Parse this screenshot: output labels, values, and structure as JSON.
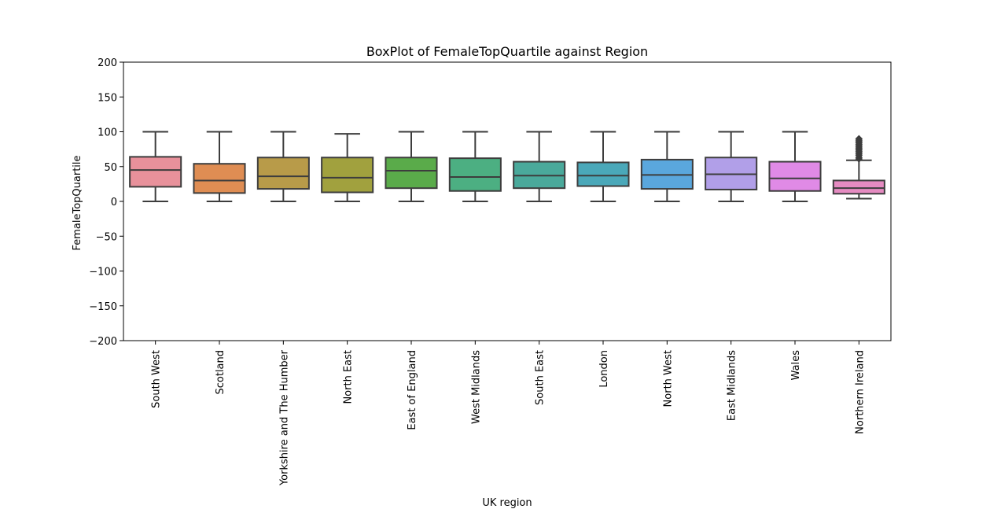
{
  "chart_data": {
    "type": "box",
    "title": "BoxPlot of FemaleTopQuartile against Region",
    "xlabel": "UK region",
    "ylabel": "FemaleTopQuartile",
    "ylim": [
      -200,
      200
    ],
    "yticks": [
      -200,
      -150,
      -100,
      -50,
      0,
      50,
      100,
      150,
      200
    ],
    "grid": false,
    "categories": [
      "South West",
      "Scotland",
      "Yorkshire and The Humber",
      "North East",
      "East of England",
      "West Midlands",
      "South East",
      "London",
      "North West",
      "East Midlands",
      "Wales",
      "Northern Ireland"
    ],
    "boxes": [
      {
        "category": "South West",
        "whisker_low": 0,
        "q1": 21,
        "median": 45,
        "q3": 64,
        "whisker_high": 100,
        "color": "#e8919b"
      },
      {
        "category": "Scotland",
        "whisker_low": 0,
        "q1": 12,
        "median": 30,
        "q3": 54,
        "whisker_high": 100,
        "color": "#df8d53"
      },
      {
        "category": "Yorkshire and The Humber",
        "whisker_low": 0,
        "q1": 18,
        "median": 36,
        "q3": 63,
        "whisker_high": 100,
        "color": "#b89b49"
      },
      {
        "category": "North East",
        "whisker_low": 0,
        "q1": 13,
        "median": 34,
        "q3": 63,
        "whisker_high": 97,
        "color": "#a1a13e"
      },
      {
        "category": "East of England",
        "whisker_low": 0,
        "q1": 19,
        "median": 44,
        "q3": 63,
        "whisker_high": 100,
        "color": "#5aab4a"
      },
      {
        "category": "West Midlands",
        "whisker_low": 0,
        "q1": 15,
        "median": 35,
        "q3": 62,
        "whisker_high": 100,
        "color": "#4caf82"
      },
      {
        "category": "South East",
        "whisker_low": 0,
        "q1": 19,
        "median": 37,
        "q3": 57,
        "whisker_high": 100,
        "color": "#4aa99b"
      },
      {
        "category": "London",
        "whisker_low": 0,
        "q1": 22,
        "median": 37,
        "q3": 56,
        "whisker_high": 100,
        "color": "#4aa8b9"
      },
      {
        "category": "North West",
        "whisker_low": 0,
        "q1": 18,
        "median": 38,
        "q3": 60,
        "whisker_high": 100,
        "color": "#5aa7dd"
      },
      {
        "category": "East Midlands",
        "whisker_low": 0,
        "q1": 17,
        "median": 39,
        "q3": 63,
        "whisker_high": 100,
        "color": "#b19fe8"
      },
      {
        "category": "Wales",
        "whisker_low": 0,
        "q1": 15,
        "median": 33,
        "q3": 57,
        "whisker_high": 100,
        "color": "#e08ae6"
      },
      {
        "category": "Northern Ireland",
        "whisker_low": 4,
        "q1": 11,
        "median": 19,
        "q3": 30,
        "whisker_high": 59,
        "color": "#e58bc1",
        "outliers": [
          61,
          63,
          66,
          68,
          70,
          72,
          74,
          76,
          78,
          80,
          82,
          84,
          86,
          88,
          90
        ]
      }
    ],
    "line_color": "#3d3d3d"
  }
}
